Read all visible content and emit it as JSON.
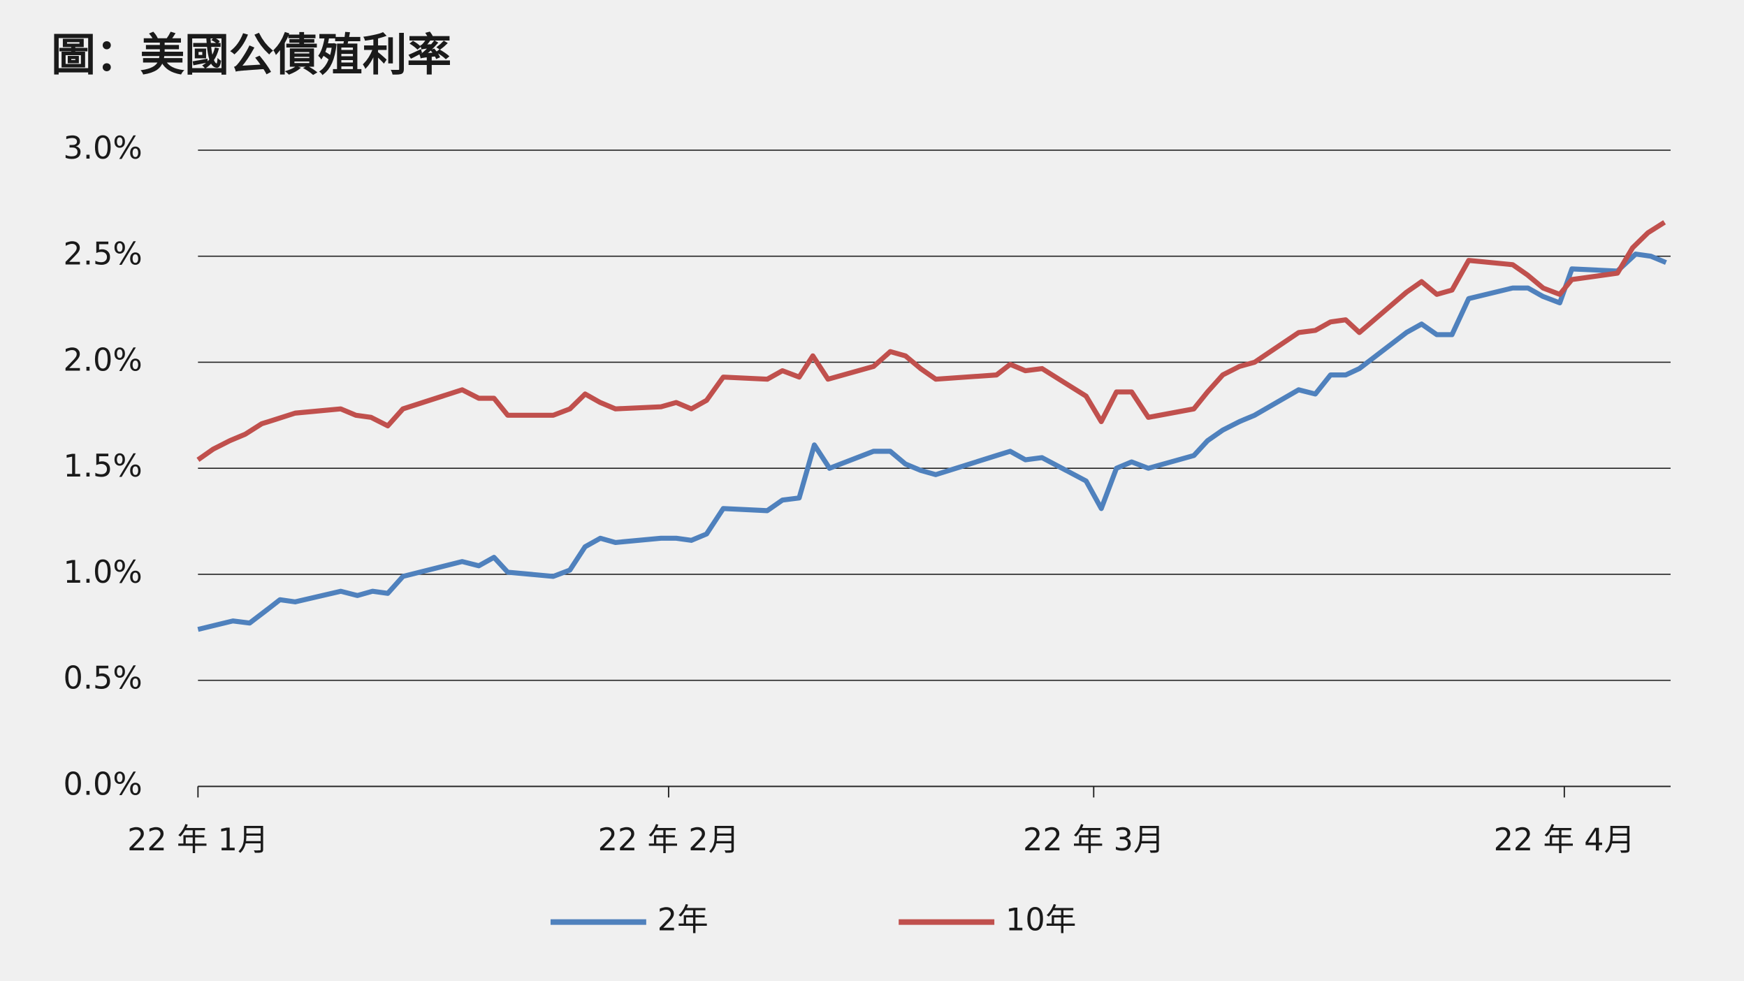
{
  "chart_data": {
    "type": "line",
    "title": "圖：美國公債殖利率",
    "xlim": [
      0,
      97.0
    ],
    "xticks": [
      {
        "value": 0,
        "label": "22 年 1月"
      },
      {
        "value": 31,
        "label": "22 年 2月"
      },
      {
        "value": 59,
        "label": "22 年 3月"
      },
      {
        "value": 90,
        "label": "22 年 4月"
      }
    ],
    "ylim": [
      0,
      3.0
    ],
    "yticks": [
      {
        "value": 0,
        "label": "0.0%"
      },
      {
        "value": 0.5,
        "label": "0.5%"
      },
      {
        "value": 1.0,
        "label": "1.0%"
      },
      {
        "value": 1.5,
        "label": "1.5%"
      },
      {
        "value": 2.0,
        "label": "2.0%"
      },
      {
        "value": 2.5,
        "label": "2.5%"
      },
      {
        "value": 3.0,
        "label": "3.0%"
      }
    ],
    "grid": true,
    "legend": "bottom",
    "series": [
      {
        "name": "2年",
        "color": "#4f81bd",
        "x": [
          0.0,
          2.3,
          3.4,
          4.5,
          5.4,
          6.4,
          9.4,
          10.5,
          11.5,
          12.5,
          13.5,
          17.4,
          18.5,
          19.5,
          20.4,
          23.4,
          24.5,
          25.5,
          26.5,
          27.5,
          30.5,
          31.5,
          32.5,
          33.5,
          34.6,
          37.5,
          38.5,
          39.6,
          40.6,
          41.6,
          44.5,
          45.6,
          46.6,
          47.6,
          48.6,
          52.6,
          53.5,
          54.5,
          55.6,
          58.5,
          59.5,
          60.5,
          61.5,
          62.6,
          65.6,
          66.5,
          67.5,
          68.6,
          69.6,
          72.5,
          73.6,
          74.6,
          75.6,
          76.5,
          79.6,
          80.6,
          81.6,
          82.6,
          83.7,
          86.6,
          87.6,
          88.6,
          89.7,
          90.5,
          93.5,
          94.7,
          95.7,
          96.7
        ],
        "values": [
          0.74,
          0.78,
          0.77,
          0.83,
          0.88,
          0.87,
          0.92,
          0.9,
          0.92,
          0.91,
          0.99,
          1.06,
          1.04,
          1.08,
          1.01,
          0.99,
          1.02,
          1.13,
          1.17,
          1.15,
          1.17,
          1.17,
          1.16,
          1.19,
          1.31,
          1.3,
          1.35,
          1.36,
          1.61,
          1.5,
          1.58,
          1.58,
          1.52,
          1.49,
          1.47,
          1.56,
          1.58,
          1.54,
          1.55,
          1.44,
          1.31,
          1.5,
          1.53,
          1.5,
          1.56,
          1.63,
          1.68,
          1.72,
          1.75,
          1.87,
          1.85,
          1.94,
          1.94,
          1.97,
          2.14,
          2.18,
          2.13,
          2.13,
          2.3,
          2.35,
          2.35,
          2.31,
          2.28,
          2.44,
          2.43,
          2.51,
          2.5,
          2.47
        ]
      },
      {
        "name": "10年",
        "color": "#c0504d",
        "x": [
          0.0,
          1.0,
          2.1,
          3.1,
          4.2,
          5.1,
          6.4,
          9.4,
          10.4,
          11.4,
          12.5,
          13.5,
          17.4,
          18.5,
          19.5,
          20.4,
          23.4,
          24.5,
          25.5,
          26.5,
          27.5,
          30.5,
          31.5,
          32.5,
          33.5,
          34.6,
          37.5,
          38.5,
          39.6,
          40.5,
          41.5,
          44.5,
          45.6,
          46.6,
          47.6,
          48.6,
          52.6,
          53.5,
          54.5,
          55.6,
          58.5,
          59.5,
          60.5,
          61.5,
          62.6,
          65.6,
          66.5,
          67.5,
          68.6,
          69.6,
          72.5,
          73.6,
          74.6,
          75.6,
          76.5,
          79.6,
          80.6,
          81.6,
          82.6,
          83.7,
          86.6,
          87.6,
          88.6,
          89.7,
          90.5,
          93.5,
          94.5,
          95.5,
          96.6
        ],
        "values": [
          1.54,
          1.59,
          1.63,
          1.66,
          1.71,
          1.73,
          1.76,
          1.78,
          1.75,
          1.74,
          1.7,
          1.78,
          1.87,
          1.83,
          1.83,
          1.75,
          1.75,
          1.78,
          1.85,
          1.81,
          1.78,
          1.79,
          1.81,
          1.78,
          1.82,
          1.93,
          1.92,
          1.96,
          1.93,
          2.03,
          1.92,
          1.98,
          2.05,
          2.03,
          1.97,
          1.92,
          1.94,
          1.99,
          1.96,
          1.97,
          1.84,
          1.72,
          1.86,
          1.86,
          1.74,
          1.78,
          1.86,
          1.94,
          1.98,
          2.0,
          2.14,
          2.15,
          2.19,
          2.2,
          2.14,
          2.33,
          2.38,
          2.32,
          2.34,
          2.48,
          2.46,
          2.41,
          2.35,
          2.32,
          2.39,
          2.42,
          2.54,
          2.61,
          2.66
        ]
      }
    ]
  }
}
